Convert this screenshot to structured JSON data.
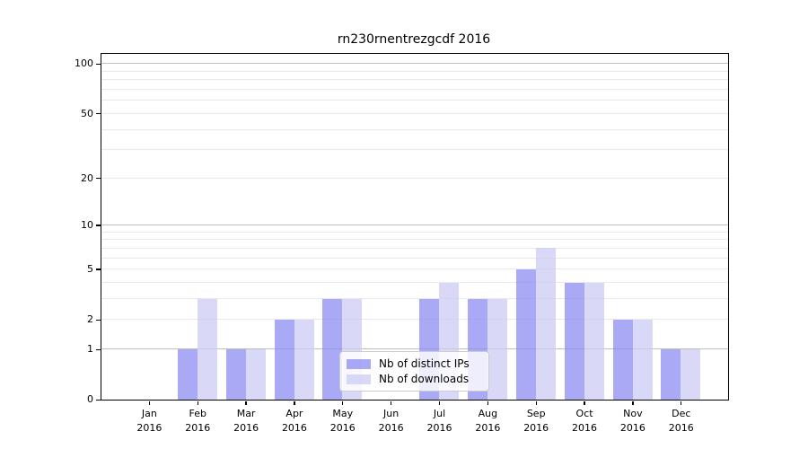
{
  "title": "rn230rnentrezgcdf 2016",
  "colors": {
    "distinct_ips": "rgba(140,140,243,0.75)",
    "downloads": "rgba(204,204,244,0.75)",
    "grid_major": "#bdbdbd",
    "grid_minor": "#e9e9e9",
    "spine": "#000000",
    "legend_border": "#cccccc",
    "legend_bg": "rgba(255,255,255,0.8)"
  },
  "legend": {
    "items": [
      {
        "label": "Nb of distinct IPs",
        "series": "distinct_ips"
      },
      {
        "label": "Nb of downloads",
        "series": "downloads"
      }
    ],
    "position": "lower center"
  },
  "x_axis": {
    "months": [
      "Jan",
      "Feb",
      "Mar",
      "Apr",
      "May",
      "Jun",
      "Jul",
      "Aug",
      "Sep",
      "Oct",
      "Nov",
      "Dec"
    ],
    "year": "2016"
  },
  "y_axis": {
    "tick_labels": [
      "100",
      "50",
      "20",
      "10",
      "5",
      "2",
      "1",
      "0"
    ],
    "tick_values": [
      100,
      50,
      20,
      10,
      5,
      2,
      1,
      0
    ]
  },
  "chart_data": {
    "type": "bar",
    "title": "rn230rnentrezgcdf 2016",
    "categories": [
      "Jan 2016",
      "Feb 2016",
      "Mar 2016",
      "Apr 2016",
      "May 2016",
      "Jun 2016",
      "Jul 2016",
      "Aug 2016",
      "Sep 2016",
      "Oct 2016",
      "Nov 2016",
      "Dec 2016"
    ],
    "series": [
      {
        "name": "Nb of distinct IPs",
        "values": [
          0,
          1,
          1,
          2,
          3,
          0,
          3,
          3,
          5,
          4,
          2,
          1
        ]
      },
      {
        "name": "Nb of downloads",
        "values": [
          0,
          3,
          1,
          2,
          3,
          0,
          4,
          3,
          7,
          4,
          2,
          1
        ]
      }
    ],
    "ylabel": "",
    "xlabel": "",
    "yscale": "log1p",
    "yticks": [
      0,
      1,
      2,
      5,
      10,
      20,
      50,
      100
    ],
    "ylim": [
      0,
      116
    ],
    "grid": "horizontal, minor at 2-9/20-90, major at 1/10/100",
    "legend_position": "lower center"
  }
}
